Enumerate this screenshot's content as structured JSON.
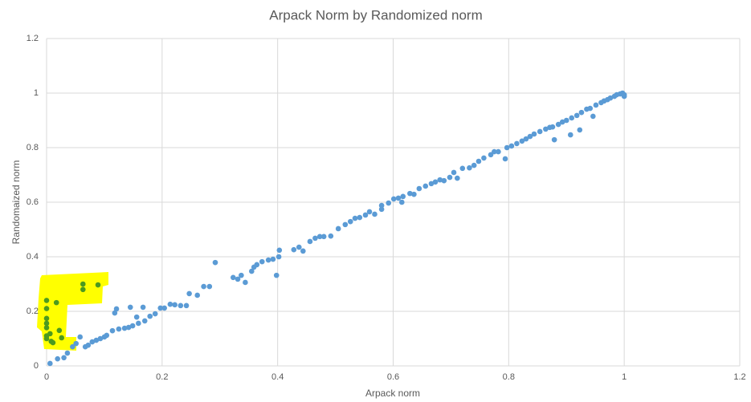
{
  "chart_data": {
    "type": "scatter",
    "title": "Arpack Norm by Randomized norm",
    "x_label": "Arpack norm",
    "y_label": "Randomaized norm",
    "xlim": [
      0,
      1.2
    ],
    "ylim": [
      0,
      1.2
    ],
    "xticks": [
      0,
      0.2,
      0.4,
      0.6,
      0.8,
      1,
      1.2
    ],
    "yticks": [
      0,
      0.2,
      0.4,
      0.6,
      0.8,
      1,
      1.2
    ],
    "grid": true,
    "series": [
      {
        "color": "#5b9bd5",
        "x": [
          0.006,
          0.019,
          0.03,
          0.036,
          0.045,
          0.051,
          0.058,
          0.067,
          0.072,
          0.079,
          0.086,
          0.093,
          0.1,
          0.104,
          0.114,
          0.121,
          0.118,
          0.125,
          0.135,
          0.142,
          0.145,
          0.149,
          0.156,
          0.159,
          0.167,
          0.17,
          0.179,
          0.188,
          0.197,
          0.204,
          0.214,
          0.222,
          0.232,
          0.242,
          0.247,
          0.261,
          0.272,
          0.282,
          0.292,
          0.323,
          0.331,
          0.337,
          0.344,
          0.355,
          0.359,
          0.364,
          0.373,
          0.384,
          0.392,
          0.398,
          0.402,
          0.403,
          0.428,
          0.437,
          0.444,
          0.456,
          0.465,
          0.473,
          0.48,
          0.492,
          0.505,
          0.517,
          0.526,
          0.534,
          0.542,
          0.552,
          0.559,
          0.568,
          0.58,
          0.58,
          0.592,
          0.601,
          0.609,
          0.615,
          0.617,
          0.629,
          0.636,
          0.645,
          0.656,
          0.666,
          0.673,
          0.681,
          0.688,
          0.698,
          0.705,
          0.711,
          0.72,
          0.732,
          0.74,
          0.748,
          0.757,
          0.769,
          0.775,
          0.782,
          0.794,
          0.797,
          0.805,
          0.814,
          0.823,
          0.83,
          0.837,
          0.844,
          0.854,
          0.864,
          0.871,
          0.876,
          0.879,
          0.886,
          0.893,
          0.9,
          0.907,
          0.909,
          0.918,
          0.923,
          0.926,
          0.935,
          0.941,
          0.946,
          0.951,
          0.96,
          0.965,
          0.971,
          0.976,
          0.983,
          0.987,
          0.993,
          0.997,
          1.0,
          1.0
        ],
        "y": [
          0.009,
          0.026,
          0.03,
          0.047,
          0.07,
          0.082,
          0.106,
          0.07,
          0.076,
          0.088,
          0.094,
          0.1,
          0.106,
          0.112,
          0.129,
          0.209,
          0.194,
          0.135,
          0.138,
          0.141,
          0.215,
          0.147,
          0.179,
          0.156,
          0.215,
          0.165,
          0.182,
          0.191,
          0.212,
          0.212,
          0.226,
          0.224,
          0.221,
          0.221,
          0.265,
          0.259,
          0.291,
          0.291,
          0.379,
          0.324,
          0.318,
          0.332,
          0.306,
          0.347,
          0.362,
          0.371,
          0.382,
          0.388,
          0.391,
          0.332,
          0.4,
          0.424,
          0.426,
          0.435,
          0.421,
          0.456,
          0.468,
          0.474,
          0.474,
          0.476,
          0.503,
          0.518,
          0.529,
          0.541,
          0.544,
          0.553,
          0.565,
          0.556,
          0.574,
          0.588,
          0.597,
          0.612,
          0.615,
          0.6,
          0.621,
          0.632,
          0.629,
          0.65,
          0.659,
          0.668,
          0.674,
          0.682,
          0.679,
          0.691,
          0.709,
          0.688,
          0.724,
          0.726,
          0.735,
          0.75,
          0.762,
          0.774,
          0.785,
          0.785,
          0.759,
          0.8,
          0.806,
          0.815,
          0.824,
          0.832,
          0.841,
          0.85,
          0.859,
          0.868,
          0.874,
          0.876,
          0.829,
          0.885,
          0.894,
          0.9,
          0.847,
          0.909,
          0.918,
          0.865,
          0.929,
          0.941,
          0.944,
          0.915,
          0.956,
          0.965,
          0.971,
          0.976,
          0.982,
          0.988,
          0.994,
          0.997,
          1.0,
          0.994,
          0.988
        ]
      },
      {
        "color": "#4c9a1f",
        "x": [
          0,
          0,
          0,
          0,
          0,
          0,
          0,
          0.006,
          0.008,
          0.017,
          0.022,
          0.026,
          0.063,
          0.063,
          0.089,
          0.011
        ],
        "y": [
          0.24,
          0.21,
          0.174,
          0.156,
          0.14,
          0.11,
          0.1,
          0.118,
          0.09,
          0.232,
          0.13,
          0.103,
          0.3,
          0.28,
          0.297,
          0.085
        ]
      }
    ]
  }
}
